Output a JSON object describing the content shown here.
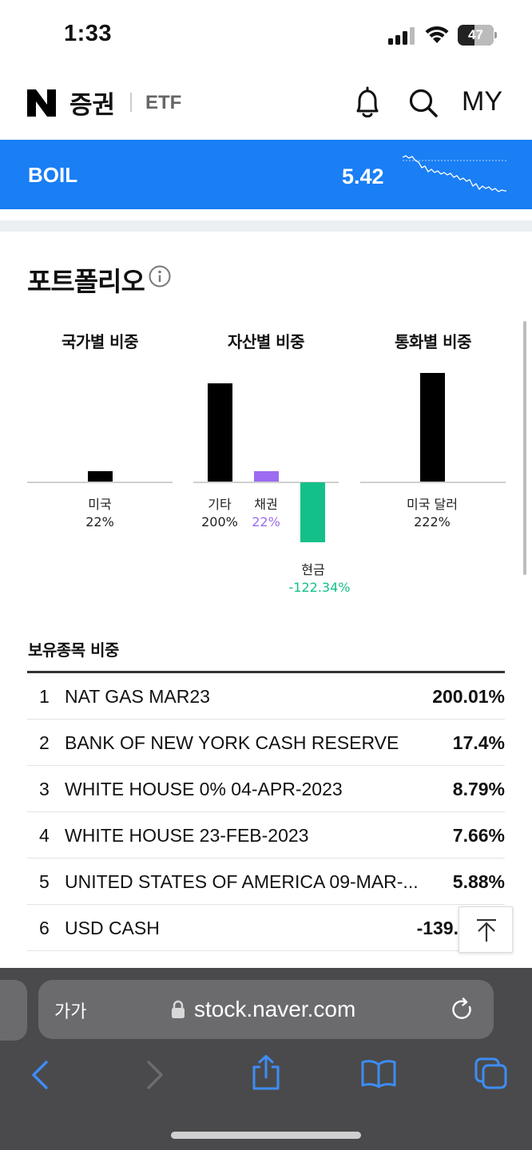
{
  "status_bar": {
    "time": "1:33",
    "battery": "47",
    "battery_level": 0.47
  },
  "header": {
    "logo_text": "증권",
    "logo_sub": "ETF",
    "my_label": "MY"
  },
  "ticker": {
    "symbol": "BOIL",
    "price": "5.42"
  },
  "portfolio": {
    "title": "포트폴리오",
    "groups": [
      {
        "title": "국가별 비중",
        "items": [
          {
            "label": "미국",
            "value_text": "22%",
            "value": 22,
            "color": "#000000"
          }
        ]
      },
      {
        "title": "자산별 비중",
        "items": [
          {
            "label": "기타",
            "value_text": "200%",
            "value": 200,
            "color": "#000000"
          },
          {
            "label": "채권",
            "value_text": "22%",
            "value": 22,
            "color": "#9b6cf0"
          },
          {
            "label": "현금",
            "value_text": "-122.34%",
            "value": -122.34,
            "color": "#13c08a"
          }
        ]
      },
      {
        "title": "통화별 비중",
        "items": [
          {
            "label": "미국 달러",
            "value_text": "222%",
            "value": 222,
            "color": "#000000"
          }
        ]
      }
    ]
  },
  "holdings": {
    "title": "보유종목 비중",
    "rows": [
      {
        "rank": "1",
        "name": "NAT GAS MAR23",
        "pct": "200.01%"
      },
      {
        "rank": "2",
        "name": "BANK OF NEW YORK CASH RESERVE",
        "pct": "17.4%"
      },
      {
        "rank": "3",
        "name": "WHITE HOUSE 0% 04-APR-2023",
        "pct": "8.79%"
      },
      {
        "rank": "4",
        "name": "WHITE HOUSE 23-FEB-2023",
        "pct": "7.66%"
      },
      {
        "rank": "5",
        "name": "UNITED STATES OF AMERICA 09-MAR-...",
        "pct": "5.88%"
      },
      {
        "rank": "6",
        "name": "USD CASH",
        "pct": "-139."
      }
    ]
  },
  "browser": {
    "aa_label": "가가",
    "url": "stock.naver.com"
  },
  "colors": {
    "accent_blue": "#1a7ef5",
    "bond_purple": "#9b6cf0",
    "cash_green": "#13c08a",
    "safari_icon_blue": "#3d8df5"
  }
}
